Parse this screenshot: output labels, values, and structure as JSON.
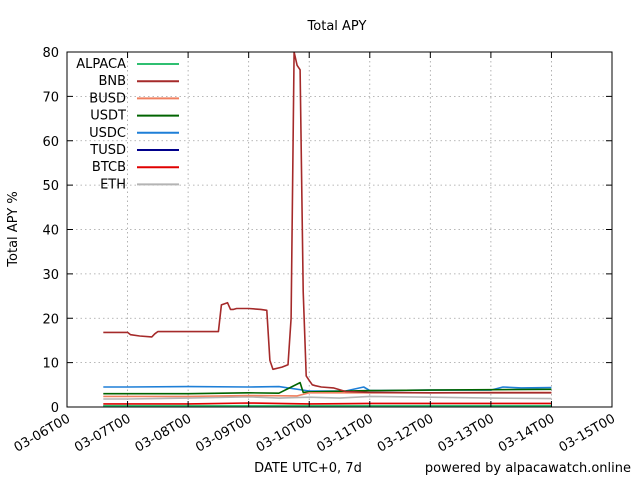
{
  "chart_data": {
    "type": "line",
    "title": "Total APY",
    "xlabel": "DATE UTC+0, 7d",
    "ylabel": "Total APY %",
    "footer": "powered by alpacawatch.online",
    "ylim": [
      0,
      80
    ],
    "yticks": [
      0,
      10,
      20,
      30,
      40,
      50,
      60,
      70,
      80
    ],
    "xlim": [
      0,
      9
    ],
    "xticks": [
      {
        "value": 0,
        "label": "03-06T00"
      },
      {
        "value": 1,
        "label": "03-07T00"
      },
      {
        "value": 2,
        "label": "03-08T00"
      },
      {
        "value": 3,
        "label": "03-09T00"
      },
      {
        "value": 4,
        "label": "03-10T00"
      },
      {
        "value": 5,
        "label": "03-11T00"
      },
      {
        "value": 6,
        "label": "03-12T00"
      },
      {
        "value": 7,
        "label": "03-13T00"
      },
      {
        "value": 8,
        "label": "03-14T00"
      },
      {
        "value": 9,
        "label": "03-15T00"
      }
    ],
    "grid": true,
    "legend_position": "top-left",
    "series": [
      {
        "name": "ALPACA",
        "color": "#2fbf71",
        "x": [
          0.6,
          8.0
        ],
        "y": [
          0.3,
          0.3
        ]
      },
      {
        "name": "BNB",
        "color": "#a52a2a",
        "x": [
          0.6,
          1.0,
          1.05,
          1.2,
          1.4,
          1.45,
          1.5,
          2.0,
          2.5,
          2.55,
          2.65,
          2.7,
          2.75,
          2.8,
          3.0,
          3.2,
          3.3,
          3.35,
          3.4,
          3.55,
          3.65,
          3.7,
          3.75,
          3.8,
          3.85,
          3.9,
          3.95,
          4.0,
          4.05,
          4.1,
          4.2,
          4.4,
          4.6,
          5.0,
          6.0,
          7.0,
          8.0
        ],
        "y": [
          16.8,
          16.8,
          16.3,
          16.0,
          15.8,
          16.5,
          17.0,
          17.0,
          17.0,
          23.0,
          23.5,
          22.0,
          22.0,
          22.2,
          22.2,
          22.0,
          21.8,
          10.5,
          8.5,
          9.0,
          9.5,
          20.0,
          80.0,
          77.0,
          76.0,
          26.0,
          7.0,
          6.0,
          5.0,
          4.8,
          4.5,
          4.3,
          3.5,
          3.3,
          3.2,
          3.2,
          3.2
        ]
      },
      {
        "name": "BUSD",
        "color": "#f08060",
        "x": [
          0.6,
          2.0,
          3.0,
          3.8,
          4.0,
          5.0,
          6.0,
          7.0,
          8.0
        ],
        "y": [
          2.4,
          2.4,
          2.6,
          2.5,
          3.2,
          3.2,
          3.2,
          3.3,
          3.3
        ]
      },
      {
        "name": "USDT",
        "color": "#006400",
        "x": [
          0.6,
          1.0,
          2.0,
          3.0,
          3.5,
          3.85,
          3.9,
          4.0,
          5.0,
          6.0,
          7.0,
          8.0
        ],
        "y": [
          3.0,
          3.0,
          3.0,
          3.2,
          3.1,
          5.5,
          3.3,
          3.4,
          3.7,
          3.8,
          3.9,
          4.0
        ]
      },
      {
        "name": "USDC",
        "color": "#1e7fd7",
        "x": [
          0.6,
          1.0,
          2.0,
          3.0,
          3.5,
          4.0,
          4.6,
          4.9,
          5.0,
          6.0,
          7.0,
          7.2,
          7.5,
          8.0
        ],
        "y": [
          4.5,
          4.5,
          4.6,
          4.5,
          4.6,
          3.6,
          3.6,
          4.5,
          3.7,
          3.8,
          3.8,
          4.5,
          4.3,
          4.4
        ]
      },
      {
        "name": "TUSD",
        "color": "#00008b",
        "x": [
          0.6,
          8.0
        ],
        "y": [
          0.2,
          0.2
        ]
      },
      {
        "name": "BTCB",
        "color": "#e00000",
        "x": [
          0.6,
          2.0,
          3.0,
          4.0,
          5.0,
          6.0,
          8.0
        ],
        "y": [
          0.7,
          0.7,
          0.9,
          0.7,
          0.8,
          0.8,
          0.8
        ]
      },
      {
        "name": "ETH",
        "color": "#b4b4b4",
        "x": [
          0.6,
          1.0,
          2.0,
          3.0,
          3.5,
          4.0,
          4.5,
          5.0,
          6.0,
          7.0,
          8.0
        ],
        "y": [
          1.8,
          1.8,
          2.0,
          2.3,
          2.0,
          2.2,
          2.0,
          2.4,
          2.2,
          2.0,
          1.9
        ]
      }
    ]
  }
}
